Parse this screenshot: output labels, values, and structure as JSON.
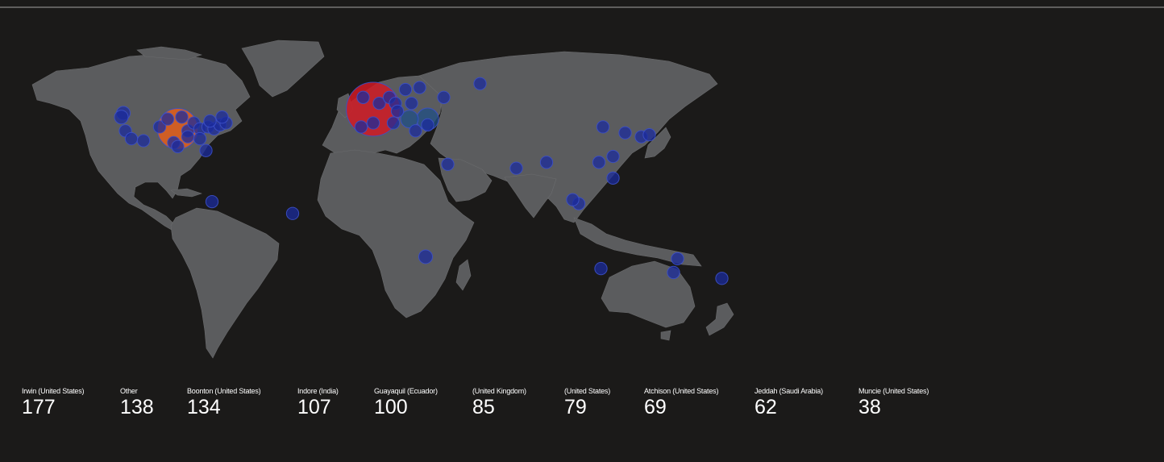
{
  "map": {
    "colors": {
      "background": "#1b1a19",
      "land": "#5b5c5e",
      "marker_small": "#1b2b9c",
      "marker_large_red": "#d11a25",
      "marker_large_orange": "#e45e1a",
      "marker_mid_teal": "#1f4f86"
    },
    "markers": [
      {
        "name": "europe-hotspot",
        "lon": 2,
        "lat": 49,
        "size": 177,
        "color": "#d11a25"
      },
      {
        "name": "us-hotspot",
        "lon": -95,
        "lat": 39,
        "size": 134,
        "color": "#e45e1a"
      },
      {
        "name": "eastern-europe-mid",
        "lon": 29,
        "lat": 44,
        "size": 30,
        "color": "#1f4f86"
      },
      {
        "name": "balkans-mid",
        "lon": 20,
        "lat": 44,
        "size": 24,
        "color": "#1f4f86"
      },
      {
        "name": "pt-1",
        "lon": -122,
        "lat": 47,
        "size": 10,
        "color": "#1b2b9c"
      },
      {
        "name": "pt-2",
        "lon": -123,
        "lat": 45,
        "size": 10,
        "color": "#1b2b9c"
      },
      {
        "name": "pt-3",
        "lon": -121,
        "lat": 38,
        "size": 9,
        "color": "#1b2b9c"
      },
      {
        "name": "pt-4",
        "lon": -118,
        "lat": 34,
        "size": 9,
        "color": "#1b2b9c"
      },
      {
        "name": "pt-5",
        "lon": -112,
        "lat": 33,
        "size": 9,
        "color": "#1b2b9c"
      },
      {
        "name": "pt-6",
        "lon": -104,
        "lat": 40,
        "size": 9,
        "color": "#1b2b9c"
      },
      {
        "name": "pt-7",
        "lon": -97,
        "lat": 32,
        "size": 9,
        "color": "#1b2b9c"
      },
      {
        "name": "pt-8",
        "lon": -95,
        "lat": 30,
        "size": 9,
        "color": "#1b2b9c"
      },
      {
        "name": "pt-9",
        "lon": -90,
        "lat": 38,
        "size": 9,
        "color": "#1b2b9c"
      },
      {
        "name": "pt-10",
        "lon": -87,
        "lat": 42,
        "size": 9,
        "color": "#1b2b9c"
      },
      {
        "name": "pt-11",
        "lon": -84,
        "lat": 39,
        "size": 9,
        "color": "#1b2b9c"
      },
      {
        "name": "pt-12",
        "lon": -84,
        "lat": 34,
        "size": 9,
        "color": "#1b2b9c"
      },
      {
        "name": "pt-13",
        "lon": -81,
        "lat": 28,
        "size": 9,
        "color": "#1b2b9c"
      },
      {
        "name": "pt-14",
        "lon": -80,
        "lat": 40,
        "size": 9,
        "color": "#1b2b9c"
      },
      {
        "name": "pt-15",
        "lon": -77,
        "lat": 39,
        "size": 9,
        "color": "#1b2b9c"
      },
      {
        "name": "pt-16",
        "lon": -74,
        "lat": 41,
        "size": 9,
        "color": "#1b2b9c"
      },
      {
        "name": "pt-17",
        "lon": -71,
        "lat": 42,
        "size": 9,
        "color": "#1b2b9c"
      },
      {
        "name": "pt-18",
        "lon": -79,
        "lat": 43,
        "size": 9,
        "color": "#1b2b9c"
      },
      {
        "name": "pt-19",
        "lon": -73,
        "lat": 45,
        "size": 9,
        "color": "#1b2b9c"
      },
      {
        "name": "pt-20",
        "lon": -93,
        "lat": 45,
        "size": 9,
        "color": "#1b2b9c"
      },
      {
        "name": "pt-21",
        "lon": -100,
        "lat": 44,
        "size": 9,
        "color": "#1b2b9c"
      },
      {
        "name": "pt-22",
        "lon": -90,
        "lat": 35,
        "size": 9,
        "color": "#1b2b9c"
      },
      {
        "name": "pt-23",
        "lon": -78,
        "lat": 2,
        "size": 9,
        "color": "#1b2b9c"
      },
      {
        "name": "pt-24",
        "lon": -38,
        "lat": -4,
        "size": 9,
        "color": "#1b2b9c"
      },
      {
        "name": "pt-25",
        "lon": -3,
        "lat": 55,
        "size": 9,
        "color": "#1b2b9c"
      },
      {
        "name": "pt-26",
        "lon": 5,
        "lat": 52,
        "size": 9,
        "color": "#1b2b9c"
      },
      {
        "name": "pt-27",
        "lon": 10,
        "lat": 55,
        "size": 9,
        "color": "#1b2b9c"
      },
      {
        "name": "pt-28",
        "lon": 13,
        "lat": 52,
        "size": 9,
        "color": "#1b2b9c"
      },
      {
        "name": "pt-29",
        "lon": 18,
        "lat": 59,
        "size": 9,
        "color": "#1b2b9c"
      },
      {
        "name": "pt-30",
        "lon": 25,
        "lat": 60,
        "size": 9,
        "color": "#1b2b9c"
      },
      {
        "name": "pt-31",
        "lon": 37,
        "lat": 55,
        "size": 9,
        "color": "#1b2b9c"
      },
      {
        "name": "pt-32",
        "lon": 21,
        "lat": 52,
        "size": 9,
        "color": "#1b2b9c"
      },
      {
        "name": "pt-33",
        "lon": 14,
        "lat": 48,
        "size": 9,
        "color": "#1b2b9c"
      },
      {
        "name": "pt-34",
        "lon": 12,
        "lat": 42,
        "size": 9,
        "color": "#1b2b9c"
      },
      {
        "name": "pt-35",
        "lon": -4,
        "lat": 40,
        "size": 9,
        "color": "#1b2b9c"
      },
      {
        "name": "pt-36",
        "lon": 2,
        "lat": 42,
        "size": 9,
        "color": "#1b2b9c"
      },
      {
        "name": "pt-37",
        "lon": 23,
        "lat": 38,
        "size": 9,
        "color": "#1b2b9c"
      },
      {
        "name": "pt-38",
        "lon": 29,
        "lat": 41,
        "size": 9,
        "color": "#1b2b9c"
      },
      {
        "name": "pt-39",
        "lon": 55,
        "lat": 62,
        "size": 9,
        "color": "#1b2b9c"
      },
      {
        "name": "pt-40",
        "lon": 39,
        "lat": 21,
        "size": 9,
        "color": "#1b2b9c"
      },
      {
        "name": "pt-41",
        "lon": 28,
        "lat": -26,
        "size": 10,
        "color": "#1b2b9c"
      },
      {
        "name": "pt-42",
        "lon": 73,
        "lat": 19,
        "size": 9,
        "color": "#1b2b9c"
      },
      {
        "name": "pt-43",
        "lon": 88,
        "lat": 22,
        "size": 9,
        "color": "#1b2b9c"
      },
      {
        "name": "pt-44",
        "lon": 104,
        "lat": 1,
        "size": 9,
        "color": "#1b2b9c"
      },
      {
        "name": "pt-45",
        "lon": 101,
        "lat": 3,
        "size": 9,
        "color": "#1b2b9c"
      },
      {
        "name": "pt-46",
        "lon": 114,
        "lat": 22,
        "size": 9,
        "color": "#1b2b9c"
      },
      {
        "name": "pt-47",
        "lon": 121,
        "lat": 25,
        "size": 9,
        "color": "#1b2b9c"
      },
      {
        "name": "pt-48",
        "lon": 121,
        "lat": 14,
        "size": 9,
        "color": "#1b2b9c"
      },
      {
        "name": "pt-49",
        "lon": 116,
        "lat": 40,
        "size": 9,
        "color": "#1b2b9c"
      },
      {
        "name": "pt-50",
        "lon": 127,
        "lat": 37,
        "size": 9,
        "color": "#1b2b9c"
      },
      {
        "name": "pt-51",
        "lon": 135,
        "lat": 35,
        "size": 9,
        "color": "#1b2b9c"
      },
      {
        "name": "pt-52",
        "lon": 139,
        "lat": 36,
        "size": 9,
        "color": "#1b2b9c"
      },
      {
        "name": "pt-53",
        "lon": 115,
        "lat": -32,
        "size": 9,
        "color": "#1b2b9c"
      },
      {
        "name": "pt-54",
        "lon": 151,
        "lat": -34,
        "size": 9,
        "color": "#1b2b9c"
      },
      {
        "name": "pt-55",
        "lon": 153,
        "lat": -27,
        "size": 9,
        "color": "#1b2b9c"
      },
      {
        "name": "pt-56",
        "lon": 175,
        "lat": -37,
        "size": 9,
        "color": "#1b2b9c"
      }
    ]
  },
  "stats": [
    {
      "label": "Irwin (United States)",
      "value": "177"
    },
    {
      "label": "Other",
      "value": "138"
    },
    {
      "label": "Boonton (United States)",
      "value": "134"
    },
    {
      "label": "Indore (India)",
      "value": "107"
    },
    {
      "label": "Guayaquil (Ecuador)",
      "value": "100"
    },
    {
      "label": "(United Kingdom)",
      "value": "85"
    },
    {
      "label": "(United States)",
      "value": "79"
    },
    {
      "label": "Atchison (United States)",
      "value": "69"
    },
    {
      "label": "Jeddah (Saudi Arabia)",
      "value": "62"
    },
    {
      "label": "Muncie (United States)",
      "value": "38"
    }
  ]
}
